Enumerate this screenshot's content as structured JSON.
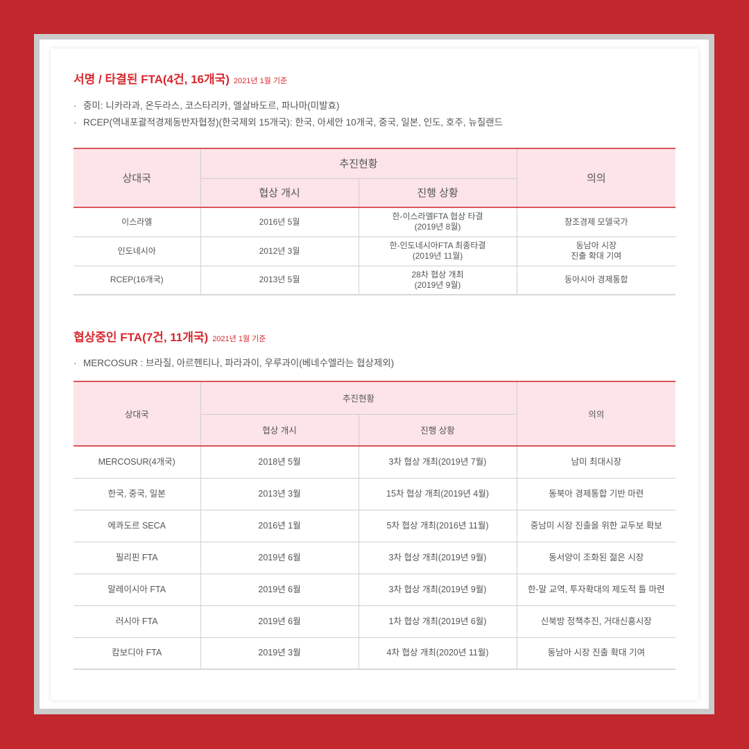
{
  "colors": {
    "background": "#c1272d",
    "accent": "#d7282f",
    "header_bg": "#fce4e8"
  },
  "section1": {
    "title": "서명 / 타결된 FTA(4건, 16개국)",
    "basis": "2021년 1월 기준",
    "bullets": [
      "중미: 니카라과, 온두라스, 코스타리카, 엘살바도르, 파나마(미발효)",
      "RCEP(역내포괄적경제동반자협정)(한국제외 15개국): 한국, 아세안 10개국, 중국, 일본, 인도, 호주, 뉴질랜드"
    ],
    "headers": {
      "partner": "상대국",
      "progress": "추진현황",
      "start": "협상 개시",
      "status": "진행 상황",
      "significance": "의의"
    },
    "rows": [
      {
        "partner": "이스라엘",
        "start": "2016년 5월",
        "status": "한-이스라엘FTA 협상 타결",
        "status2": "(2019년 8월)",
        "sig": "창조경제 모델국가",
        "sig2": ""
      },
      {
        "partner": "인도네시아",
        "start": "2012년 3월",
        "status": "한-인도네시아FTA 최종타결",
        "status2": "(2019년 11월)",
        "sig": "동남아 시장",
        "sig2": "진출 확대 기여"
      },
      {
        "partner": "RCEP(16개국)",
        "start": "2013년 5월",
        "status": "28차 협상 개최",
        "status2": "(2019년 9월)",
        "sig": "동아시아 경제통합",
        "sig2": ""
      }
    ]
  },
  "section2": {
    "title": "협상중인 FTA(7건, 11개국)",
    "basis": "2021년 1월 기준",
    "bullets": [
      "MERCOSUR : 브라질, 아르헨티나, 파라과이, 우루과이(베네수엘라는 협상제외)"
    ],
    "headers": {
      "partner": "상대국",
      "progress": "추진현황",
      "start": "협상 개시",
      "status": "진행 상황",
      "significance": "의의"
    },
    "rows": [
      {
        "partner": "MERCOSUR(4개국)",
        "start": "2018년 5월",
        "status": "3차 협상 개최(2019년 7월)",
        "sig": "남미 최대시장"
      },
      {
        "partner": "한국, 중국, 일본",
        "start": "2013년 3월",
        "status": "15차 협상 개최(2019년 4월)",
        "sig": "동북아 경제통합 기반 마련"
      },
      {
        "partner": "에콰도르 SECA",
        "start": "2016년 1월",
        "status": "5차 협상 개최(2016년 11월)",
        "sig": "중남미 시장 진출을 위한 교두보 확보"
      },
      {
        "partner": "필리핀 FTA",
        "start": "2019년 6월",
        "status": "3차 협상 개최(2019년 9월)",
        "sig": "동서양이 조화된 젊은 시장"
      },
      {
        "partner": "말레이시아 FTA",
        "start": "2019년 6월",
        "status": "3차 협상 개최(2019년 9월)",
        "sig": "한-말 교역, 투자확대의 제도적 틀 마련"
      },
      {
        "partner": "러시아 FTA",
        "start": "2019년 6월",
        "status": "1차 협상 개최(2019년 6월)",
        "sig": "신북방 정책추진, 거대신흥시장"
      },
      {
        "partner": "캄보디아 FTA",
        "start": "2019년 3월",
        "status": "4차 협상 개최(2020년 11월)",
        "sig": "동남아 시장 진출 확대 기여"
      }
    ]
  }
}
